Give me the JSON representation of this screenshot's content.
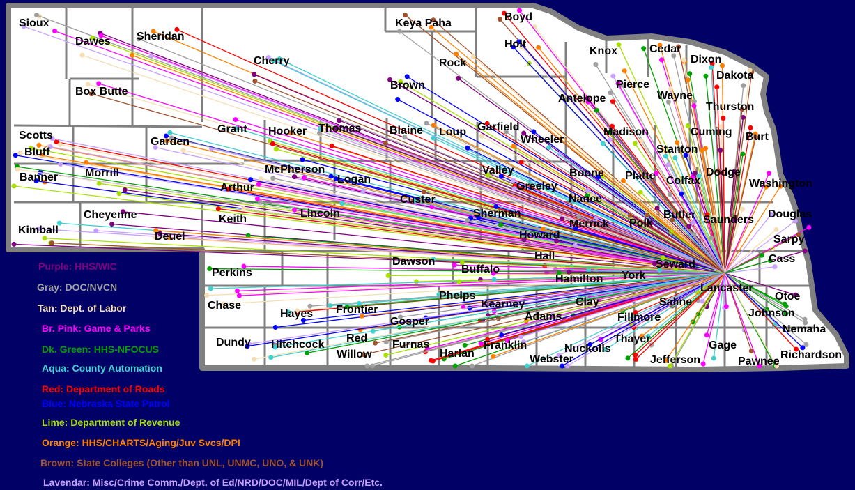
{
  "map": {
    "state_fill": "#ffffff",
    "border_color": "#808080",
    "background": "#000066",
    "hub_county": "Lancaster",
    "counties": [
      "Sioux",
      "Dawes",
      "Sheridan",
      "Cherry",
      "Keya Paha",
      "Boyd",
      "Holt",
      "Knox",
      "Cedar",
      "Dixon",
      "Dakota",
      "Rock",
      "Brown",
      "Box Butte",
      "Antelope",
      "Pierce",
      "Wayne",
      "Thurston",
      "Scotts Bluff",
      "Grant",
      "Hooker",
      "Thomas",
      "Blaine",
      "Loup",
      "Garfield",
      "Wheeler",
      "Madison",
      "Stanton",
      "Cuming",
      "Burt",
      "Garden",
      "Banner",
      "Morrill",
      "McPherson",
      "Logan",
      "Valley",
      "Greeley",
      "Boone",
      "Platte",
      "Colfax",
      "Dodge",
      "Washington",
      "Arthur",
      "Custer",
      "Nance",
      "Cheyenne",
      "Keith",
      "Lincoln",
      "Sherman",
      "Butler",
      "Saunders",
      "Douglas",
      "Kimball",
      "Deuel",
      "Merrick",
      "Polk",
      "Howard",
      "Sarpy",
      "Hall",
      "Dawson",
      "Perkins",
      "Buffalo",
      "Seward",
      "Cass",
      "Hamilton",
      "York",
      "Lancaster",
      "Otoe",
      "Phelps",
      "Kearney",
      "Clay",
      "Saline",
      "Chase",
      "Hayes",
      "Frontier",
      "Adams",
      "Johnson",
      "Gosper",
      "Fillmore",
      "Nemaha",
      "Red Willow",
      "Dundy",
      "Hitchcock",
      "Furnas",
      "Harlan",
      "Franklin",
      "Nuckolls",
      "Thayer",
      "Gage",
      "Webster",
      "Jefferson",
      "Pawnee",
      "Richardson"
    ]
  },
  "legend": [
    {
      "label": "Purple: HHS/WIC",
      "color": "#800080"
    },
    {
      "label": "Gray: DOC/NVCN",
      "color": "#a0a0a0"
    },
    {
      "label": "Tan: Dept. of Labor",
      "color": "#f5deb3"
    },
    {
      "label": "Br. Pink: Game & Parks",
      "color": "#ff00ff"
    },
    {
      "label": "Dk. Green: HHS-NFOCUS",
      "color": "#00a000"
    },
    {
      "label": "Aqua: County Automation",
      "color": "#40d0d0"
    },
    {
      "label": "Red: Department of Roads",
      "color": "#ff0000"
    },
    {
      "label": "Blue: Nebraska State Patrol",
      "color": "#0000ff"
    },
    {
      "label": "Lime: Department of Revenue",
      "color": "#a8e000"
    },
    {
      "label": "Orange: HHS/CHARTS/Aging/Juv Svcs/DPI",
      "color": "#ff8000"
    },
    {
      "label": "Brown: State Colleges (Other than UNL, UNMC, UNO, & UNK)",
      "color": "#a0522d"
    },
    {
      "label": "Lavendar: Misc/Crime Comm./Dept. of Ed/NRD/DOC/MIL/Dept of Corr/Etc.",
      "color": "#c8a0ff"
    }
  ]
}
